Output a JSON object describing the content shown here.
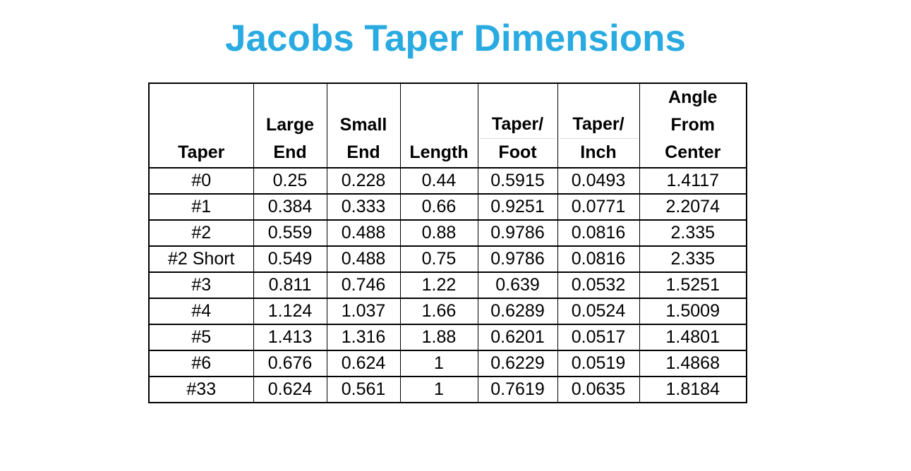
{
  "title": "Jacobs Taper Dimensions",
  "accent_color": "#29ABE2",
  "border_color": "#000000",
  "faint_gridline_color": "#dcdcdc",
  "chart_data": {
    "type": "table",
    "title": "Jacobs Taper Dimensions",
    "columns": [
      {
        "id": "taper",
        "label": "Taper",
        "lines": [
          "Taper"
        ],
        "split": false
      },
      {
        "id": "large-end",
        "label": "Large End",
        "lines": [
          "Large",
          "End"
        ],
        "split": false
      },
      {
        "id": "small-end",
        "label": "Small End",
        "lines": [
          "Small",
          "End"
        ],
        "split": false
      },
      {
        "id": "length",
        "label": "Length",
        "lines": [
          "Length"
        ],
        "split": false
      },
      {
        "id": "taper-per-foot",
        "label": "Taper/Foot",
        "lines": [
          "Taper/",
          "Foot"
        ],
        "split": true
      },
      {
        "id": "taper-per-inch",
        "label": "Taper/Inch",
        "lines": [
          "Taper/",
          "Inch"
        ],
        "split": true
      },
      {
        "id": "angle-from-center",
        "label": "Angle From Center",
        "lines": [
          "Angle",
          "From",
          "Center"
        ],
        "split": false
      }
    ],
    "rows": [
      [
        "#0",
        "0.25",
        "0.228",
        "0.44",
        "0.5915",
        "0.0493",
        "1.4117"
      ],
      [
        "#1",
        "0.384",
        "0.333",
        "0.66",
        "0.9251",
        "0.0771",
        "2.2074"
      ],
      [
        "#2",
        "0.559",
        "0.488",
        "0.88",
        "0.9786",
        "0.0816",
        "2.335"
      ],
      [
        "#2 Short",
        "0.549",
        "0.488",
        "0.75",
        "0.9786",
        "0.0816",
        "2.335"
      ],
      [
        "#3",
        "0.811",
        "0.746",
        "1.22",
        "0.639",
        "0.0532",
        "1.5251"
      ],
      [
        "#4",
        "1.124",
        "1.037",
        "1.66",
        "0.6289",
        "0.0524",
        "1.5009"
      ],
      [
        "#5",
        "1.413",
        "1.316",
        "1.88",
        "0.6201",
        "0.0517",
        "1.4801"
      ],
      [
        "#6",
        "0.676",
        "0.624",
        "1",
        "0.6229",
        "0.0519",
        "1.4868"
      ],
      [
        "#33",
        "0.624",
        "0.561",
        "1",
        "0.7619",
        "0.0635",
        "1.8184"
      ]
    ]
  }
}
